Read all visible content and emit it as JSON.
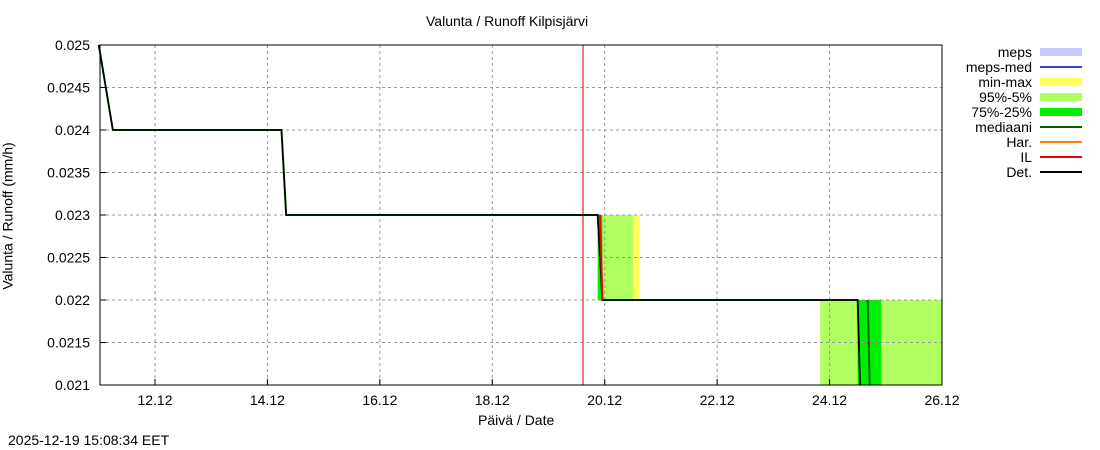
{
  "title": "Valunta / Runoff  Kilpisjärvi",
  "timestamp": "2025-12-19 15:08:34 EET",
  "chart_data": {
    "type": "line",
    "title": "Valunta / Runoff  Kilpisjärvi",
    "xlabel": "Päivä / Date",
    "ylabel": "Valunta / Runoff (mm/h)",
    "ylim": [
      0.021,
      0.025
    ],
    "yticks": [
      "0.021",
      "0.0215",
      "0.022",
      "0.0225",
      "0.023",
      "0.0235",
      "0.024",
      "0.0245",
      "0.025"
    ],
    "xticks": [
      "12.12",
      "14.12",
      "16.12",
      "18.12",
      "20.12",
      "22.12",
      "24.12",
      "26.12"
    ],
    "grid": true,
    "legend_position": "right",
    "now_marker": "19.12 ~15:00 (red vertical line)",
    "legend": [
      {
        "label": "meps",
        "color": "#c8c8ff",
        "kind": "band"
      },
      {
        "label": "meps-med",
        "color": "#4040d0",
        "kind": "line"
      },
      {
        "label": "min-max",
        "color": "#ffff60",
        "kind": "band"
      },
      {
        "label": "95%-5%",
        "color": "#b0ff60",
        "kind": "band"
      },
      {
        "label": "75%-25%",
        "color": "#00ee00",
        "kind": "band"
      },
      {
        "label": "mediaani",
        "color": "#006400",
        "kind": "line"
      },
      {
        "label": "Har.",
        "color": "#ff8000",
        "kind": "line"
      },
      {
        "label": "IL",
        "color": "#ee0000",
        "kind": "line"
      },
      {
        "label": "Det.",
        "color": "#000000",
        "kind": "line"
      }
    ],
    "series": [
      {
        "name": "Det.",
        "points": [
          [
            "11.12 00:00",
            0.025
          ],
          [
            "11.12 06:00",
            0.024
          ],
          [
            "14.12 06:00",
            0.024
          ],
          [
            "14.12 08:00",
            0.023
          ],
          [
            "19.12 21:00",
            0.023
          ],
          [
            "19.12 23:00",
            0.022
          ],
          [
            "24.12 12:00",
            0.022
          ],
          [
            "24.12 13:00",
            0.021
          ]
        ]
      },
      {
        "name": "min-max",
        "x_range": [
          "19.12 21:00",
          "20.12 15:00"
        ],
        "y_range": [
          0.022,
          0.023
        ]
      },
      {
        "name": "95%-5%",
        "segments": [
          {
            "x_range": [
              "19.12 21:00",
              "20.12 12:00"
            ],
            "y_range": [
              0.022,
              0.023
            ]
          },
          {
            "x_range": [
              "23.12 20:00",
              "26.12 00:00"
            ],
            "y_range": [
              0.021,
              0.022
            ]
          }
        ]
      },
      {
        "name": "75%-25%",
        "x_range": [
          "24.12 12:00",
          "24.12 22:00"
        ],
        "y_range": [
          0.021,
          0.022
        ]
      }
    ]
  }
}
